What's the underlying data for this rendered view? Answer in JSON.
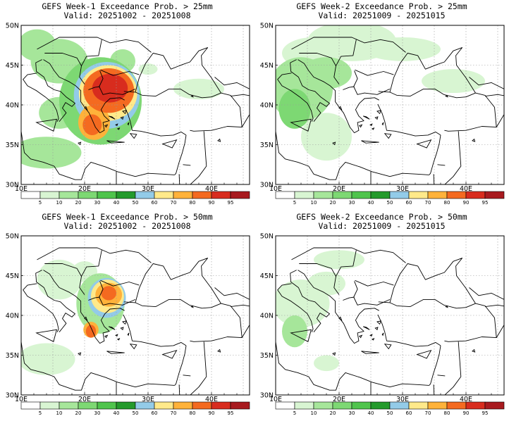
{
  "panels": [
    {
      "id": "w1_25",
      "title": "GEFS Week-1 Exceedance Prob. > 25mm",
      "valid": "Valid: 20251002 - 20251008",
      "blobs": [
        {
          "lon": 12.5,
          "lat": 47.5,
          "rx": 3.0,
          "ry": 2.0,
          "level": 20
        },
        {
          "lon": 16,
          "lat": 45.5,
          "rx": 4.5,
          "ry": 2.8,
          "level": 20
        },
        {
          "lon": 16,
          "lat": 39,
          "rx": 3.2,
          "ry": 2.0,
          "level": 20
        },
        {
          "lon": 14,
          "lat": 34,
          "rx": 5.5,
          "ry": 2.0,
          "level": 20
        },
        {
          "lon": 22.5,
          "lat": 40.5,
          "rx": 6.5,
          "ry": 5.5,
          "level": 30
        },
        {
          "lon": 23.5,
          "lat": 41.2,
          "rx": 5.2,
          "ry": 4.2,
          "level": 50
        },
        {
          "lon": 23.7,
          "lat": 41.5,
          "rx": 4.6,
          "ry": 3.5,
          "level": 70
        },
        {
          "lon": 21.5,
          "lat": 37.8,
          "rx": 2.5,
          "ry": 2.2,
          "level": 80
        },
        {
          "lon": 23.8,
          "lat": 41.8,
          "rx": 4.0,
          "ry": 2.8,
          "level": 90
        },
        {
          "lon": 21.2,
          "lat": 37.5,
          "rx": 1.5,
          "ry": 1.3,
          "level": 90
        },
        {
          "lon": 24.0,
          "lat": 42.1,
          "rx": 2.8,
          "ry": 1.8,
          "level": 95
        },
        {
          "lon": 26.0,
          "lat": 45.5,
          "rx": 2.0,
          "ry": 1.5,
          "level": 20
        },
        {
          "lon": 38,
          "lat": 42,
          "rx": 4.0,
          "ry": 1.3,
          "level": 10
        },
        {
          "lon": 30,
          "lat": 44.5,
          "rx": 1.5,
          "ry": 0.7,
          "level": 10
        }
      ]
    },
    {
      "id": "w2_25",
      "title": "GEFS Week-2 Exceedance Prob. > 25mm",
      "valid": "Valid: 20251009 - 20251015",
      "blobs": [
        {
          "lon": 14,
          "lat": 42,
          "rx": 5.0,
          "ry": 4.0,
          "level": 20
        },
        {
          "lon": 13,
          "lat": 39.5,
          "rx": 2.5,
          "ry": 2.5,
          "level": 30
        },
        {
          "lon": 18,
          "lat": 44,
          "rx": 4.0,
          "ry": 2.0,
          "level": 20
        },
        {
          "lon": 16,
          "lat": 46.5,
          "rx": 5.0,
          "ry": 2.0,
          "level": 10
        },
        {
          "lon": 22,
          "lat": 48,
          "rx": 7.0,
          "ry": 2.5,
          "level": 10
        },
        {
          "lon": 30,
          "lat": 47,
          "rx": 6.0,
          "ry": 1.5,
          "level": 10
        },
        {
          "lon": 18,
          "lat": 36,
          "rx": 4.0,
          "ry": 3.0,
          "level": 10
        },
        {
          "lon": 38,
          "lat": 43,
          "rx": 5.0,
          "ry": 1.5,
          "level": 10
        }
      ]
    },
    {
      "id": "w1_50",
      "title": "GEFS Week-1 Exceedance Prob. > 50mm",
      "valid": "Valid: 20251002 - 20251008",
      "blobs": [
        {
          "lon": 16,
          "lat": 44.5,
          "rx": 3.5,
          "ry": 2.5,
          "level": 10
        },
        {
          "lon": 14,
          "lat": 34.5,
          "rx": 4.5,
          "ry": 2.0,
          "level": 10
        },
        {
          "lon": 22.5,
          "lat": 41.5,
          "rx": 3.8,
          "ry": 3.8,
          "level": 20
        },
        {
          "lon": 23.5,
          "lat": 42.2,
          "rx": 3.0,
          "ry": 2.5,
          "level": 50
        },
        {
          "lon": 23.6,
          "lat": 42.4,
          "rx": 2.6,
          "ry": 2.1,
          "level": 70
        },
        {
          "lon": 23.8,
          "lat": 42.6,
          "rx": 2.1,
          "ry": 1.5,
          "level": 80
        },
        {
          "lon": 23.8,
          "lat": 42.8,
          "rx": 1.2,
          "ry": 0.9,
          "level": 90
        },
        {
          "lon": 21.0,
          "lat": 38.2,
          "rx": 1.2,
          "ry": 1.0,
          "level": 80
        },
        {
          "lon": 21.0,
          "lat": 38.0,
          "rx": 0.8,
          "ry": 0.8,
          "level": 90
        },
        {
          "lon": 20,
          "lat": 45.5,
          "rx": 2.0,
          "ry": 1.3,
          "level": 10
        }
      ]
    },
    {
      "id": "w2_50",
      "title": "GEFS Week-2 Exceedance Prob. > 50mm",
      "valid": "Valid: 20251009 - 20251015",
      "blobs": [
        {
          "lon": 14,
          "lat": 41.5,
          "rx": 4.5,
          "ry": 3.0,
          "level": 10
        },
        {
          "lon": 18,
          "lat": 44,
          "rx": 3.0,
          "ry": 1.5,
          "level": 10
        },
        {
          "lon": 13,
          "lat": 38,
          "rx": 2.0,
          "ry": 2.0,
          "level": 20
        },
        {
          "lon": 20,
          "lat": 47,
          "rx": 4.0,
          "ry": 1.2,
          "level": 10
        },
        {
          "lon": 18,
          "lat": 34,
          "rx": 2.0,
          "ry": 1.0,
          "level": 10
        }
      ]
    }
  ],
  "map_extent": {
    "lon": [
      10,
      46
    ],
    "lat": [
      30,
      50
    ]
  },
  "lon_labels": [
    "10E",
    "20E",
    "30E",
    "40E"
  ],
  "lat_labels": [
    "30N",
    "35N",
    "40N",
    "45N",
    "50N"
  ],
  "colorbar": {
    "labels": [
      "5",
      "10",
      "20",
      "30",
      "40",
      "50",
      "60",
      "70",
      "80",
      "90",
      "95"
    ],
    "colors": [
      "#ffffff",
      "#d8f5d2",
      "#a6e69a",
      "#7dd873",
      "#4fc44c",
      "#249a2c",
      "#93cbe8",
      "#ffe98a",
      "#ffb23a",
      "#f46a20",
      "#d82c1e",
      "#a81a1f"
    ]
  },
  "level_colors": {
    "10": "#d8f5d2",
    "20": "#a6e69a",
    "30": "#7dd873",
    "40": "#4fc44c",
    "50": "#93cbe8",
    "60": "#93cbe8",
    "70": "#ffe98a",
    "80": "#ffb23a",
    "90": "#f46a20",
    "95": "#d82c1e"
  }
}
